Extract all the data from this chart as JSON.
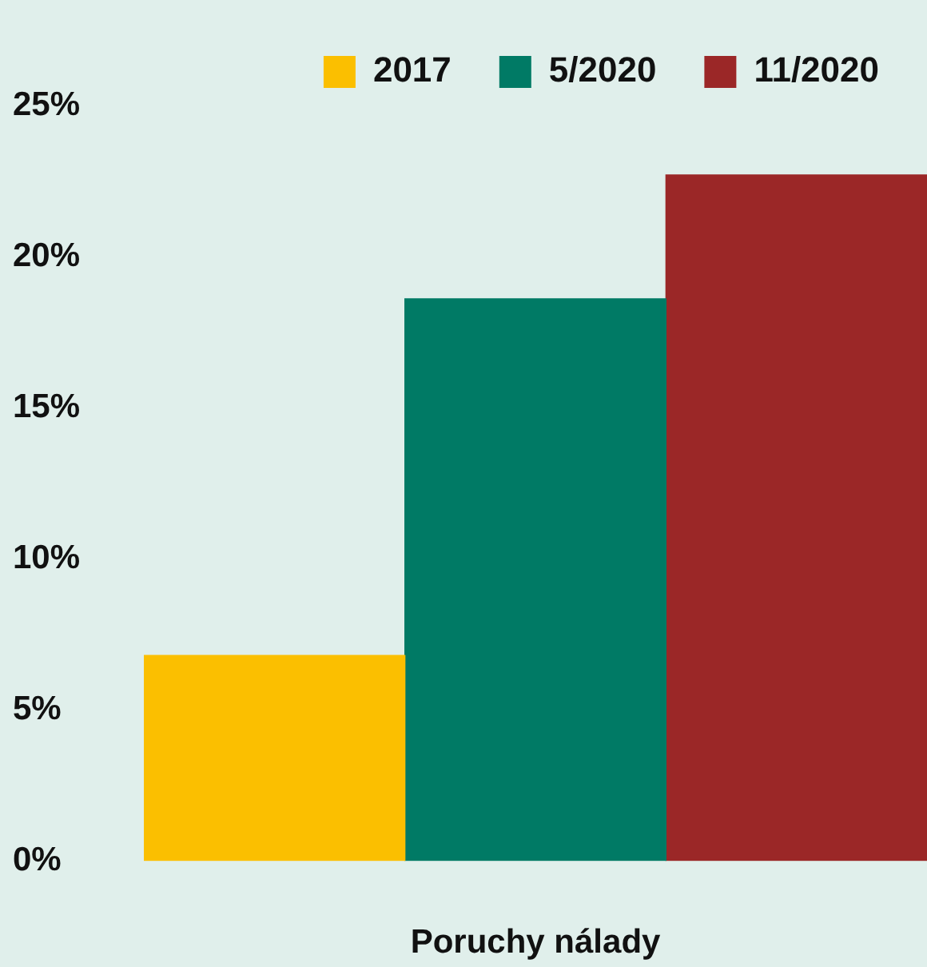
{
  "chart_data": {
    "type": "bar",
    "categories": [
      null
    ],
    "xlabel": "Poruchy nálady",
    "series": [
      {
        "name": "2017",
        "color": "#fbbf00",
        "values": [
          6.8
        ]
      },
      {
        "name": "5/2020",
        "color": "#007a65",
        "values": [
          18.6
        ]
      },
      {
        "name": "11/2020",
        "color": "#9b2727",
        "values": [
          22.7
        ]
      }
    ],
    "ylim": [
      0,
      25
    ],
    "yticks": [
      {
        "value": 0,
        "label": "0%"
      },
      {
        "value": 5,
        "label": "5%"
      },
      {
        "value": 10,
        "label": "10%"
      },
      {
        "value": 15,
        "label": "15%"
      },
      {
        "value": 20,
        "label": "20%"
      },
      {
        "value": 25,
        "label": "25%"
      }
    ],
    "grid": false,
    "legend": "top"
  }
}
